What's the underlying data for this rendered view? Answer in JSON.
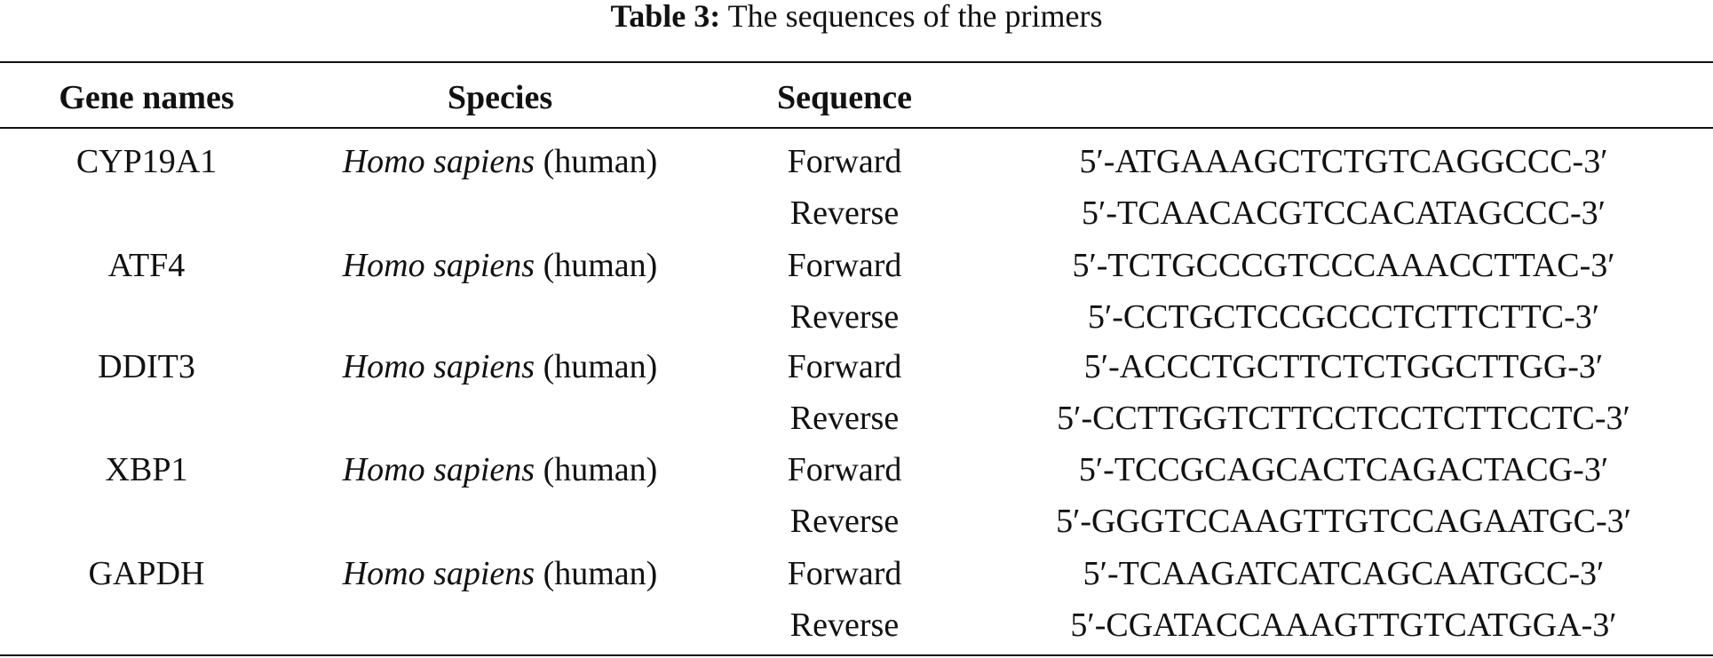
{
  "caption": {
    "label": "Table 3:",
    "text": "The sequences of the primers"
  },
  "table": {
    "header": [
      "Gene names",
      "Species",
      "Sequence"
    ],
    "groups": [
      {
        "gene": "CYP19A1",
        "species": "Homo sapiens",
        "common": "(human)",
        "primers": [
          {
            "direction": "Forward",
            "sequence": "5′-ATGAAAGCTCTGTCAGGCCC-3′"
          },
          {
            "direction": "Reverse",
            "sequence": "5′-TCAACACGTCCACATAGCCC-3′"
          }
        ]
      },
      {
        "gene": "ATF4",
        "species": "Homo sapiens",
        "common": "(human)",
        "primers": [
          {
            "direction": "Forward",
            "sequence": "5′-TCTGCCCGTCCCAAACCTTAC-3′"
          },
          {
            "direction": "Reverse",
            "sequence": "5′-CCTGCTCCGCCCTCTTCTTC-3′"
          }
        ]
      },
      {
        "gene": "DDIT3",
        "species": "Homo sapiens",
        "common": "(human)",
        "primers": [
          {
            "direction": "Forward",
            "sequence": "5′-ACCCTGCTTCTCTGGCTTGG-3′"
          },
          {
            "direction": "Reverse",
            "sequence": "5′-CCTTGGTCTTCCTCCTCTTCCTC-3′"
          }
        ]
      },
      {
        "gene": "XBP1",
        "species": "Homo sapiens",
        "common": "(human)",
        "primers": [
          {
            "direction": "Forward",
            "sequence": "5′-TCCGCAGCACTCAGACTACG-3′"
          },
          {
            "direction": "Reverse",
            "sequence": "5′-GGGTCCAAGTTGTCCAGAATGC-3′"
          }
        ]
      },
      {
        "gene": "GAPDH",
        "species": "Homo sapiens",
        "common": "(human)",
        "primers": [
          {
            "direction": "Forward",
            "sequence": "5′-TCAAGATCATCAGCAATGCC-3′"
          },
          {
            "direction": "Reverse",
            "sequence": "5′-CGATACCAAAGTTGTCATGGA-3′"
          }
        ]
      }
    ]
  }
}
